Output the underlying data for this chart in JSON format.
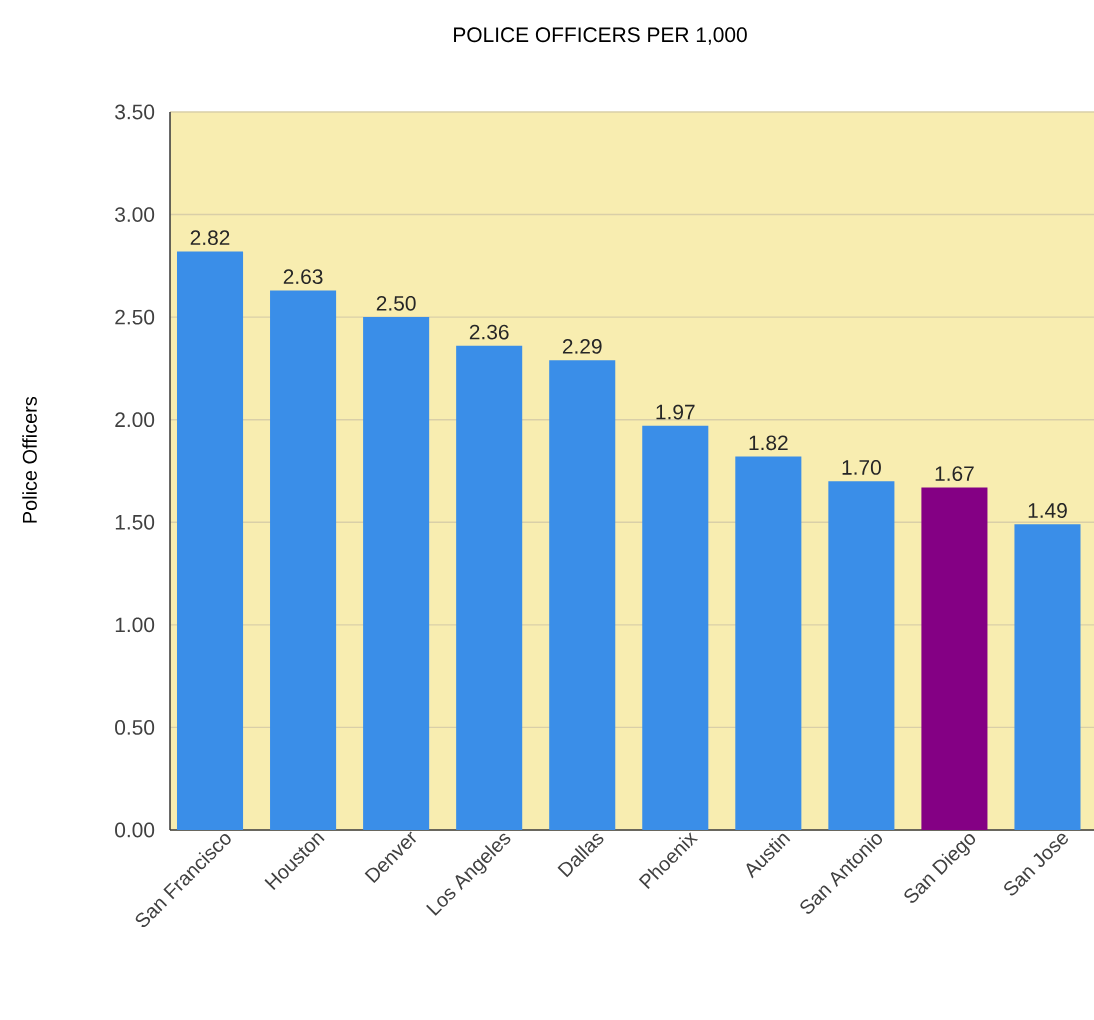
{
  "chart_data": {
    "type": "bar",
    "title": "POLICE OFFICERS PER 1,000",
    "ylabel": "Police Officers",
    "categories": [
      "San Francisco",
      "Houston",
      "Denver",
      "Los Angeles",
      "Dallas",
      "Phoenix",
      "Austin",
      "San Antonio",
      "San Diego",
      "San Jose"
    ],
    "values": [
      2.82,
      2.63,
      2.5,
      2.36,
      2.29,
      1.97,
      1.82,
      1.7,
      1.67,
      1.49
    ],
    "value_labels": [
      "2.82",
      "2.63",
      "2.50",
      "2.36",
      "2.29",
      "1.97",
      "1.82",
      "1.70",
      "1.67",
      "1.49"
    ],
    "colors": [
      "#3a8ee8",
      "#3a8ee8",
      "#3a8ee8",
      "#3a8ee8",
      "#3a8ee8",
      "#3a8ee8",
      "#3a8ee8",
      "#3a8ee8",
      "#840084",
      "#3a8ee8"
    ],
    "ylim": [
      0,
      3.5
    ],
    "yticks": [
      {
        "value": 0,
        "label": "0.00"
      },
      {
        "value": 0.5,
        "label": "0.50"
      },
      {
        "value": 1,
        "label": "1.00"
      },
      {
        "value": 1.5,
        "label": "1.50"
      },
      {
        "value": 2,
        "label": "2.00"
      },
      {
        "value": 2.5,
        "label": "2.50"
      },
      {
        "value": 3,
        "label": "3.00"
      },
      {
        "value": 3.5,
        "label": "3.50"
      }
    ],
    "grid": "y"
  }
}
